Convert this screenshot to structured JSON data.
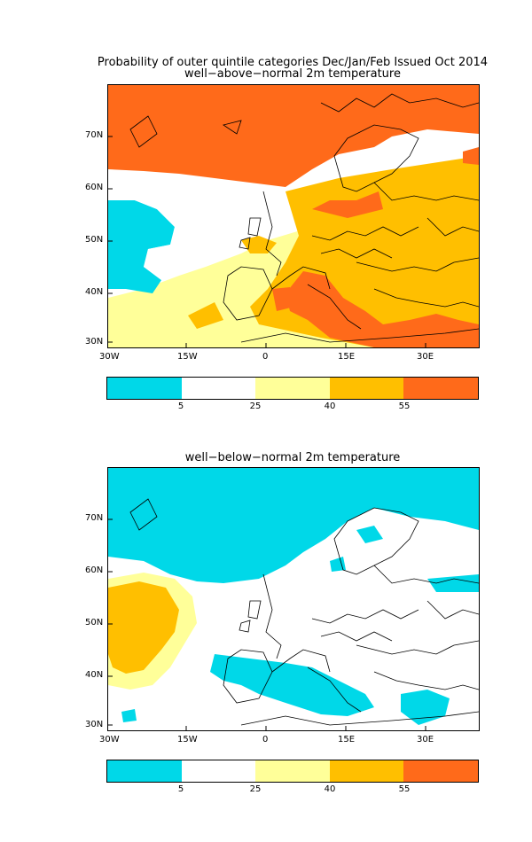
{
  "header": {
    "title_line1": "Probability of outer quintile categories Dec/Jan/Feb Issued Oct 2014"
  },
  "panels": [
    {
      "subtitle": "well−above−normal 2m temperature"
    },
    {
      "subtitle": "well−below−normal 2m temperature"
    }
  ],
  "axes": {
    "lat_labels": [
      "70N",
      "60N",
      "50N",
      "40N",
      "30N"
    ],
    "lon_labels": [
      "30W",
      "15W",
      "0",
      "15E",
      "30E"
    ]
  },
  "legend": {
    "colors": [
      "#00d8e8",
      "#ffffff",
      "#ffff99",
      "#ffbf00",
      "#ff6a1a"
    ],
    "labels": [
      "5",
      "25",
      "40",
      "55"
    ]
  }
}
